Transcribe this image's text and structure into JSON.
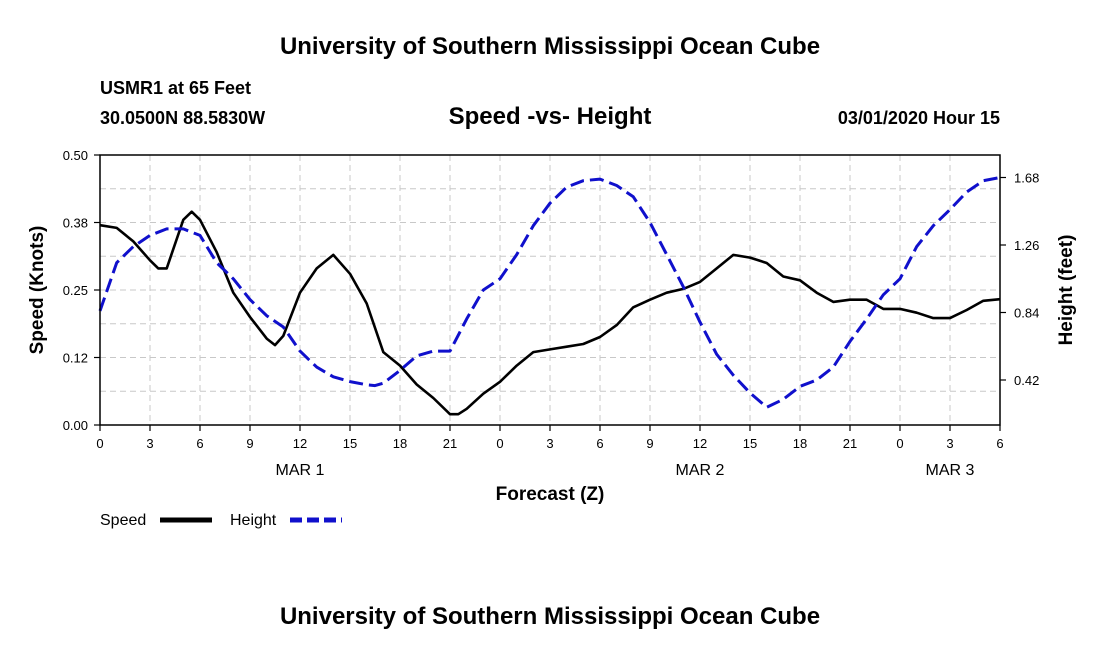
{
  "header": {
    "title": "University of Southern Mississippi Ocean Cube",
    "station": "USMR1 at 65 Feet",
    "coords": "30.0500N 88.5830W",
    "datetime": "03/01/2020 Hour 15"
  },
  "footer": {
    "title": "University of Southern Mississippi Ocean Cube"
  },
  "colors": {
    "speed": "#000000",
    "height": "#1010cc",
    "grid": "#c8c8c8"
  },
  "chart_data": {
    "type": "line",
    "title": "Speed -vs- Height",
    "xlabel": "Forecast (Z)",
    "ylabel": "Speed (Knots)",
    "y2label": "Height (feet)",
    "xlim": [
      0,
      54
    ],
    "ylim": [
      0,
      0.5
    ],
    "y2lim": [
      0.14,
      1.82
    ],
    "x_ticks": [
      0,
      3,
      6,
      9,
      12,
      15,
      18,
      21,
      24,
      27,
      30,
      33,
      36,
      39,
      42,
      45,
      48,
      51,
      54
    ],
    "x_tick_labels": [
      "0",
      "3",
      "6",
      "9",
      "12",
      "15",
      "18",
      "21",
      "0",
      "3",
      "6",
      "9",
      "12",
      "15",
      "18",
      "21",
      "0",
      "3",
      "6"
    ],
    "y_ticks": [
      0.0,
      0.125,
      0.25,
      0.375,
      0.5
    ],
    "y_tick_labels": [
      "0.00",
      "0.12",
      "0.25",
      "0.38",
      "0.50"
    ],
    "y2_ticks": [
      0.42,
      0.84,
      1.26,
      1.68
    ],
    "y2_tick_labels": [
      "0.42",
      "0.84",
      "1.26",
      "1.68"
    ],
    "date_labels": [
      {
        "x": 12,
        "label": "MAR 1"
      },
      {
        "x": 36,
        "label": "MAR 2"
      },
      {
        "x": 51,
        "label": "MAR 3"
      }
    ],
    "legend": [
      {
        "name": "Speed",
        "style": "solid"
      },
      {
        "name": "Height",
        "style": "dashed"
      }
    ],
    "series": [
      {
        "name": "Speed",
        "axis": "left",
        "style": "solid",
        "x": [
          0,
          1,
          2,
          3,
          3.5,
          4,
          5,
          5.5,
          6,
          7,
          8,
          9,
          10,
          10.5,
          11,
          12,
          13,
          14,
          15,
          16,
          17,
          18,
          19,
          20,
          21,
          21.5,
          22,
          23,
          24,
          25,
          26,
          27,
          28,
          29,
          30,
          31,
          32,
          33,
          34,
          35,
          36,
          37,
          38,
          39,
          40,
          41,
          42,
          43,
          44,
          45,
          46,
          47,
          48,
          49,
          50,
          51,
          52,
          53,
          54
        ],
        "values": [
          0.37,
          0.365,
          0.34,
          0.305,
          0.29,
          0.29,
          0.38,
          0.395,
          0.38,
          0.32,
          0.245,
          0.2,
          0.16,
          0.148,
          0.165,
          0.245,
          0.29,
          0.315,
          0.28,
          0.225,
          0.135,
          0.11,
          0.075,
          0.05,
          0.02,
          0.02,
          0.03,
          0.058,
          0.08,
          0.11,
          0.135,
          0.14,
          0.145,
          0.15,
          0.163,
          0.185,
          0.218,
          0.232,
          0.245,
          0.252,
          0.265,
          0.29,
          0.315,
          0.31,
          0.3,
          0.275,
          0.268,
          0.245,
          0.228,
          0.232,
          0.232,
          0.215,
          0.215,
          0.208,
          0.198,
          0.198,
          0.213,
          0.23,
          0.233
        ]
      },
      {
        "name": "Height",
        "axis": "right",
        "style": "dashed",
        "x": [
          0,
          1,
          2,
          3,
          4,
          5,
          6,
          7,
          8,
          9,
          10,
          11,
          12,
          13,
          14,
          15,
          16,
          16.5,
          17,
          18,
          19,
          20,
          21,
          22,
          23,
          24,
          25,
          26,
          27,
          28,
          29,
          30,
          31,
          32,
          33,
          34,
          35,
          36,
          37,
          38,
          39,
          40,
          41,
          42,
          43,
          44,
          45,
          46,
          47,
          48,
          49,
          50,
          51,
          52,
          53,
          54
        ],
        "values": [
          0.85,
          1.15,
          1.25,
          1.32,
          1.36,
          1.36,
          1.32,
          1.15,
          1.05,
          0.92,
          0.82,
          0.75,
          0.6,
          0.5,
          0.44,
          0.41,
          0.39,
          0.385,
          0.4,
          0.48,
          0.57,
          0.6,
          0.6,
          0.8,
          0.98,
          1.05,
          1.2,
          1.38,
          1.52,
          1.62,
          1.66,
          1.67,
          1.63,
          1.56,
          1.4,
          1.2,
          1.0,
          0.78,
          0.58,
          0.45,
          0.34,
          0.25,
          0.3,
          0.38,
          0.42,
          0.5,
          0.66,
          0.8,
          0.95,
          1.05,
          1.25,
          1.38,
          1.48,
          1.59,
          1.66,
          1.68
        ]
      }
    ]
  }
}
